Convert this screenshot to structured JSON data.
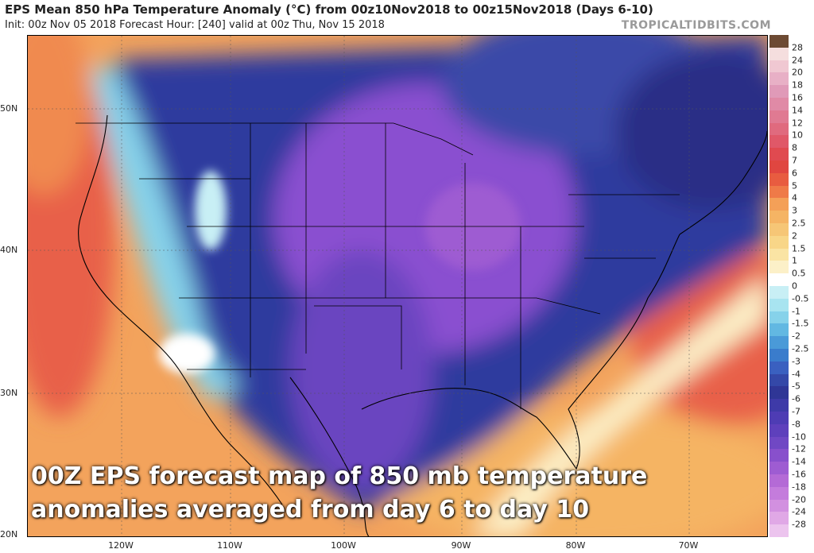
{
  "header": {
    "title": "EPS Mean 850 hPa Temperature Anomaly (°C) from 00z10Nov2018 to 00z15Nov2018 (Days 6-10)",
    "subtitle": "Init: 00z Nov 05 2018   Forecast Hour: [240]   valid at 00z Thu, Nov 15 2018",
    "brand": "TROPICALTIDBITS.COM"
  },
  "caption": {
    "line1": "00Z EPS forecast map of 850 mb temperature",
    "line2": "anomalies averaged from day 6 to day 10"
  },
  "axes": {
    "lat_labels": [
      "50N",
      "40N",
      "30N",
      "20N"
    ],
    "lon_labels": [
      "120W",
      "110W",
      "100W",
      "90W",
      "80W",
      "70W"
    ]
  },
  "legend": {
    "labels": [
      "28",
      "24",
      "20",
      "18",
      "16",
      "14",
      "12",
      "10",
      "8",
      "7",
      "6",
      "5",
      "4",
      "3",
      "2.5",
      "2",
      "1.5",
      "1",
      "0.5",
      "0",
      "-0.5",
      "-1",
      "-1.5",
      "-2",
      "-2.5",
      "-3",
      "-4",
      "-5",
      "-6",
      "-7",
      "-8",
      "-10",
      "-12",
      "-14",
      "-16",
      "-18",
      "-20",
      "-24",
      "-28"
    ],
    "colors": [
      "#6d4a33",
      "#f5dede",
      "#f0c8d2",
      "#e8b0c6",
      "#e09ab8",
      "#e08aa6",
      "#e07a92",
      "#e06a7e",
      "#e05868",
      "#e04a50",
      "#e04640",
      "#e85c40",
      "#ef7a48",
      "#f4a058",
      "#f5b464",
      "#f6c676",
      "#f8d688",
      "#fae4a4",
      "#fcf0c8",
      "#ffffff",
      "#c8eff5",
      "#a8e4f0",
      "#86d2ea",
      "#62b8e2",
      "#4a9ad8",
      "#3a7ccc",
      "#3a60c0",
      "#3448a8",
      "#2f3696",
      "#3e3aa8",
      "#4e3cb4",
      "#5e40bc",
      "#7048c4",
      "#8850cc",
      "#9e5cd2",
      "#b46ad6",
      "#c47cdc",
      "#d290e0",
      "#e0a8e6",
      "#ecc4ee"
    ]
  },
  "colors": {
    "warm_orange": "#f3a35c",
    "warm_red": "#e8604a",
    "cold_blue": "#2f3b9e",
    "cold_purple": "#8a4fd0",
    "brand_gray": "#9a9a9a"
  }
}
